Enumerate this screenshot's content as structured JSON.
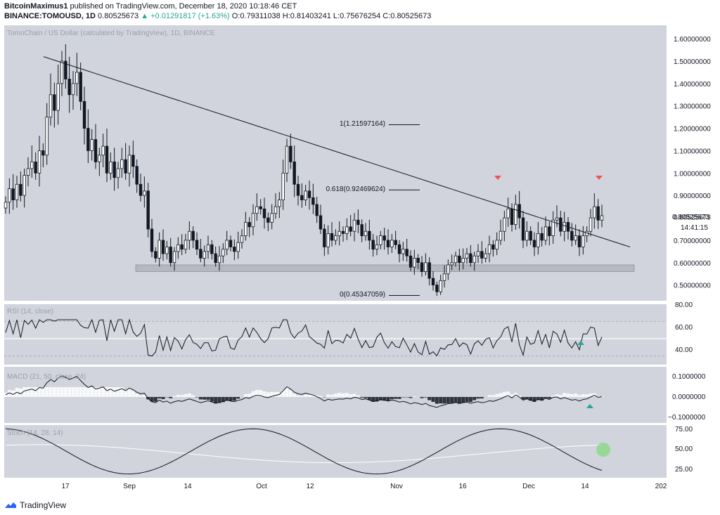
{
  "header": {
    "author": "BitcoinMaximus1",
    "published_text": "published on TradingView.com, December 18, 2020 10:18:46 CET",
    "symbol": "BINANCE:TOMOUSD, 1D",
    "last": "0.80525673",
    "change": "▲ +0.01291817 (+1.63%)",
    "ohlc": "O:0.79311038  H:0.81403241  L:0.75676254  C:0.80525673"
  },
  "main": {
    "title": "TomoChain / US Dollar (calculated by TradingView), 1D, BINANCE",
    "currency": "USD",
    "price_label": "0.80525673",
    "countdown": "14:41:15",
    "fib": [
      {
        "label": "1(1.21597164)",
        "value": 1.21597164
      },
      {
        "label": "0.618(0.92469624)",
        "value": 0.92469624
      },
      {
        "label": "0(0.45347059)",
        "value": 0.45347059
      }
    ]
  },
  "panes": {
    "rsi": {
      "title": "RSI (14, close)",
      "ticks": [
        "80.00",
        "60.00",
        "40.00"
      ]
    },
    "macd": {
      "title": "MACD (21, 50, close, 24)",
      "ticks": [
        "0.1000000",
        "0.0000000",
        "−0.1000000"
      ]
    },
    "stoch": {
      "title": "Stoch (14, 28, 14)",
      "ticks": [
        "75.00",
        "50.00",
        "25.00"
      ]
    }
  },
  "footer": {
    "brand": "TradingView"
  },
  "colors": {
    "bg": "#d1d4dc",
    "line": "#131722",
    "candle_up": "#ffffff",
    "candle_down": "#131722",
    "marker_red": "#ef5350",
    "marker_green": "#26a69a",
    "support_zone": "#b2b5be",
    "stoch_highlight": "#8bd784"
  },
  "chart_data": {
    "type": "candlestick",
    "title": "TomoChain / US Dollar (calculated by TradingView), 1D, BINANCE",
    "x_tick_labels": [
      "17",
      "Sep",
      "14",
      "Oct",
      "12",
      "Nov",
      "16",
      "Dec",
      "14",
      "202"
    ],
    "y_ticks": [
      "1.60000000",
      "1.50000000",
      "1.40000000",
      "1.30000000",
      "1.20000000",
      "1.10000000",
      "1.00000000",
      "0.90000000",
      "0.80525673",
      "0.70000000",
      "0.60000000",
      "0.50000000"
    ],
    "ylim": [
      0.43,
      1.66
    ],
    "close": [
      0.87,
      0.93,
      0.88,
      0.95,
      0.9,
      0.99,
      1.02,
      1.05,
      1.0,
      1.1,
      1.08,
      1.25,
      1.35,
      1.28,
      1.4,
      1.5,
      1.42,
      1.35,
      1.4,
      1.45,
      1.32,
      1.2,
      1.1,
      1.15,
      1.05,
      1.08,
      1.12,
      1.0,
      1.05,
      0.98,
      1.02,
      1.06,
      1.0,
      1.08,
      1.03,
      0.95,
      0.9,
      0.92,
      0.75,
      0.65,
      0.62,
      0.7,
      0.64,
      0.67,
      0.6,
      0.65,
      0.68,
      0.66,
      0.7,
      0.74,
      0.7,
      0.66,
      0.62,
      0.65,
      0.68,
      0.64,
      0.6,
      0.63,
      0.66,
      0.7,
      0.67,
      0.65,
      0.69,
      0.72,
      0.78,
      0.76,
      0.82,
      0.85,
      0.84,
      0.8,
      0.78,
      0.82,
      0.85,
      0.88,
      1.0,
      1.12,
      1.05,
      0.95,
      0.9,
      0.88,
      0.92,
      0.89,
      0.86,
      0.81,
      0.75,
      0.67,
      0.73,
      0.7,
      0.72,
      0.74,
      0.73,
      0.76,
      0.74,
      0.79,
      0.77,
      0.72,
      0.74,
      0.7,
      0.66,
      0.68,
      0.72,
      0.7,
      0.67,
      0.7,
      0.68,
      0.64,
      0.66,
      0.63,
      0.58,
      0.62,
      0.6,
      0.56,
      0.6,
      0.53,
      0.5,
      0.47,
      0.52,
      0.55,
      0.59,
      0.6,
      0.63,
      0.6,
      0.62,
      0.64,
      0.6,
      0.63,
      0.65,
      0.62,
      0.64,
      0.68,
      0.66,
      0.7,
      0.74,
      0.8,
      0.84,
      0.77,
      0.86,
      0.8,
      0.7,
      0.74,
      0.7,
      0.67,
      0.73,
      0.7,
      0.76,
      0.72,
      0.79,
      0.8,
      0.74,
      0.78,
      0.74,
      0.7,
      0.72,
      0.67,
      0.72,
      0.74,
      0.8,
      0.85,
      0.79,
      0.81
    ]
  }
}
